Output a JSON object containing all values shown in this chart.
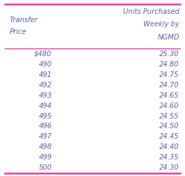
{
  "col1_header": [
    "Transfer",
    "Price"
  ],
  "col2_header": [
    "Units Purchased",
    "Weekly by",
    "NGMD"
  ],
  "transfer_prices": [
    "$480",
    "490",
    "491",
    "492",
    "493",
    "494",
    "495",
    "496",
    "497",
    "498",
    "499",
    "500"
  ],
  "units_purchased": [
    "25.30",
    "24.80",
    "24.75",
    "24.70",
    "24.65",
    "24.60",
    "24.55",
    "24.50",
    "24.45",
    "24.40",
    "24.35",
    "24.30"
  ],
  "border_color": "#e8359a",
  "text_color": "#5b5ea6",
  "bg_color": "#ffffff",
  "border_linewidth": 1.8,
  "separator_linewidth": 1.0,
  "font_size": 7.2,
  "header_font_size": 7.2
}
